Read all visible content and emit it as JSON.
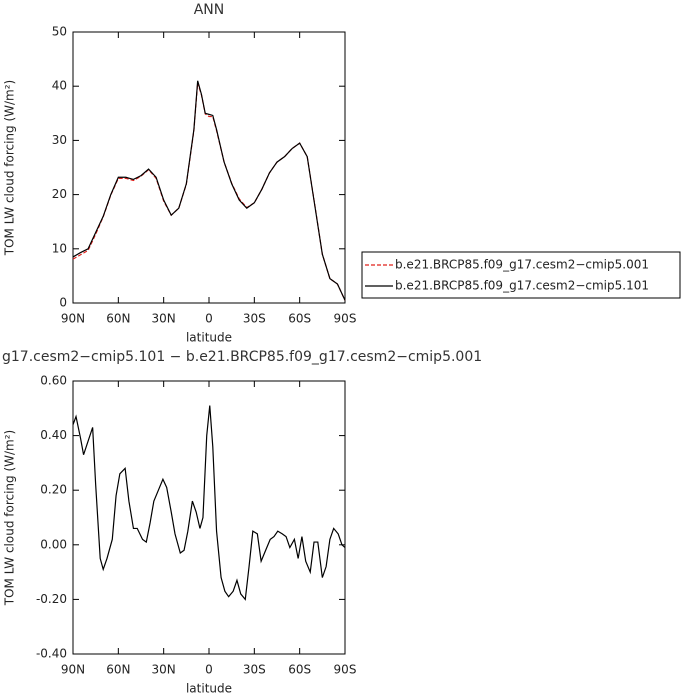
{
  "chart_data": [
    {
      "type": "line",
      "title": "ANN",
      "y_label": "TOM LW cloud forcing (W/m²)",
      "x_label": "latitude",
      "legend": "right",
      "x": [
        90,
        85,
        80,
        75,
        70,
        65,
        60,
        55,
        50,
        45,
        40,
        35,
        30,
        25,
        20,
        15,
        10,
        7.5,
        5,
        2.5,
        0,
        -2.5,
        -5,
        -10,
        -15,
        -20,
        -25,
        -30,
        -35,
        -40,
        -45,
        -50,
        -55,
        -60,
        -65,
        -70,
        -75,
        -80,
        -85,
        -90
      ],
      "xlim": [
        90,
        -90
      ],
      "xticks": [
        {
          "value": 90,
          "label": "90N"
        },
        {
          "value": 60,
          "label": "60N"
        },
        {
          "value": 30,
          "label": "30N"
        },
        {
          "value": 0,
          "label": "0"
        },
        {
          "value": -30,
          "label": "30S"
        },
        {
          "value": -60,
          "label": "60S"
        },
        {
          "value": -90,
          "label": "90S"
        }
      ],
      "ylim": [
        0,
        50
      ],
      "yticks": [
        0,
        10,
        20,
        30,
        40,
        50
      ],
      "series": [
        {
          "name": "b.e21.BRCP85.f09_g17.cesm2−cmip5.001",
          "color": "#e0201b",
          "dashed": true,
          "values": [
            8.1,
            8.9,
            9.7,
            12.7,
            15.9,
            19.9,
            23.0,
            23.0,
            22.6,
            23.4,
            24.6,
            23.0,
            18.8,
            16.2,
            17.5,
            21.9,
            31.8,
            40.6,
            38.4,
            34.9,
            34.4,
            34.4,
            31.8,
            26.0,
            22.1,
            19.2,
            17.6,
            18.5,
            21.0,
            24.0,
            26.0,
            27.0,
            28.5,
            29.5,
            27.0,
            18.1,
            9.0,
            4.5,
            3.5,
            0.5
          ]
        },
        {
          "name": "b.e21.BRCP85.f09_g17.cesm2−cmip5.101",
          "color": "#000000",
          "dashed": false,
          "values": [
            8.5,
            9.3,
            10,
            13,
            16,
            20,
            23.2,
            23.2,
            22.8,
            23.5,
            24.7,
            23.2,
            19,
            16.2,
            17.5,
            22,
            32,
            41,
            38.5,
            35,
            34.8,
            34.6,
            32,
            26,
            22,
            19,
            17.5,
            18.5,
            21,
            24,
            26,
            27,
            28.5,
            29.5,
            27,
            18,
            9,
            4.5,
            3.5,
            0.5
          ]
        }
      ]
    },
    {
      "type": "line",
      "title": "g17.cesm2−cmip5.101 − b.e21.BRCP85.f09_g17.cesm2−cmip5.001",
      "y_label": "TOM LW cloud forcing (W/m²)",
      "x_label": "latitude",
      "x": [
        90,
        88,
        85,
        83,
        80,
        77,
        75,
        72,
        70,
        67.5,
        64,
        61.5,
        59,
        55.5,
        53,
        50,
        47.5,
        44,
        41.5,
        39,
        36.5,
        33.5,
        30.5,
        28,
        25,
        22.5,
        19,
        16.5,
        14,
        11,
        8.5,
        6,
        4,
        1.5,
        -0.5,
        -2.5,
        -5,
        -8,
        -10.5,
        -13,
        -16,
        -18.5,
        -21,
        -24,
        -26.5,
        -29,
        -32,
        -34.5,
        -37.5,
        -40.5,
        -43,
        -45.5,
        -48.5,
        -51,
        -53.5,
        -56.5,
        -59,
        -61.5,
        -64,
        -67,
        -69.5,
        -72,
        -75,
        -77.5,
        -80,
        -82.5,
        -85.5,
        -88,
        -90
      ],
      "xlim": [
        90,
        -90
      ],
      "xticks": [
        {
          "value": 90,
          "label": "90N"
        },
        {
          "value": 60,
          "label": "60N"
        },
        {
          "value": 30,
          "label": "30N"
        },
        {
          "value": 0,
          "label": "0"
        },
        {
          "value": -30,
          "label": "30S"
        },
        {
          "value": -60,
          "label": "60S"
        },
        {
          "value": -90,
          "label": "90S"
        }
      ],
      "ylim": [
        -0.4,
        0.6
      ],
      "yticks": [
        {
          "value": -0.4,
          "label": "-0.40"
        },
        {
          "value": -0.2,
          "label": "-0.20"
        },
        {
          "value": 0,
          "label": "0.00"
        },
        {
          "value": 0.2,
          "label": "0.20"
        },
        {
          "value": 0.4,
          "label": "0.40"
        },
        {
          "value": 0.6,
          "label": "0.60"
        }
      ],
      "series": [
        {
          "color": "#000000",
          "dashed": false,
          "values": [
            0.44,
            0.47,
            0.39,
            0.33,
            0.38,
            0.43,
            0.22,
            -0.05,
            -0.09,
            -0.05,
            0.02,
            0.18,
            0.26,
            0.28,
            0.16,
            0.06,
            0.06,
            0.02,
            0.01,
            0.08,
            0.16,
            0.2,
            0.24,
            0.21,
            0.12,
            0.04,
            -0.03,
            -0.02,
            0.05,
            0.16,
            0.12,
            0.06,
            0.1,
            0.4,
            0.51,
            0.36,
            0.05,
            -0.12,
            -0.17,
            -0.19,
            -0.17,
            -0.13,
            -0.18,
            -0.2,
            -0.08,
            0.05,
            0.04,
            -0.06,
            -0.02,
            0.02,
            0.03,
            0.05,
            0.04,
            0.03,
            -0.01,
            0.02,
            -0.05,
            0.03,
            -0.06,
            -0.1,
            0.01,
            0.01,
            -0.12,
            -0.08,
            0.02,
            0.06,
            0.04,
            0.0,
            -0.01
          ]
        }
      ]
    }
  ]
}
